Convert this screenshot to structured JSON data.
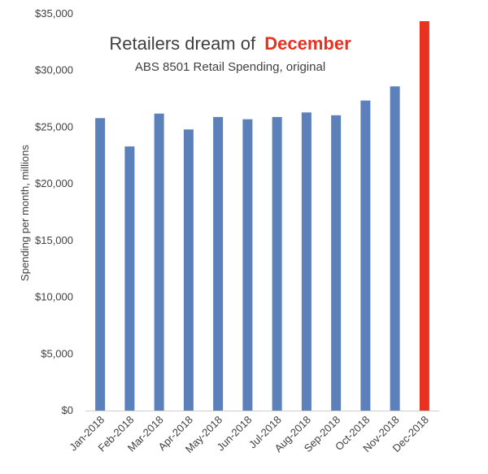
{
  "chart_data": {
    "type": "bar",
    "title": "Retailers dream of",
    "title_highlight": "December",
    "subtitle": "ABS 8501  Retail Spending, original",
    "xlabel": "",
    "ylabel": "Spending per month, millions",
    "ylim": [
      0,
      35000
    ],
    "y_ticks": [
      "$0",
      "$5,000",
      "$10,000",
      "$15,000",
      "$20,000",
      "$25,000",
      "$30,000",
      "$35,000"
    ],
    "y_tick_values": [
      0,
      5000,
      10000,
      15000,
      20000,
      25000,
      30000,
      35000
    ],
    "categories": [
      "Jan-2018",
      "Feb-2018",
      "Mar-2018",
      "Apr-2018",
      "May-2018",
      "Jun-2018",
      "Jul-2018",
      "Aug-2018",
      "Sep-2018",
      "Oct-2018",
      "Nov-2018",
      "Dec-2018"
    ],
    "values": [
      25800,
      23300,
      26200,
      24800,
      25900,
      25700,
      25900,
      26300,
      26050,
      27350,
      28600,
      34350
    ],
    "grid": false,
    "legend": "none",
    "colors": {
      "bar": "#5b80ba",
      "highlight_bar": "#e8321f",
      "title_highlight": "#e8321f",
      "text": "#404040"
    },
    "highlight_index": 11
  }
}
